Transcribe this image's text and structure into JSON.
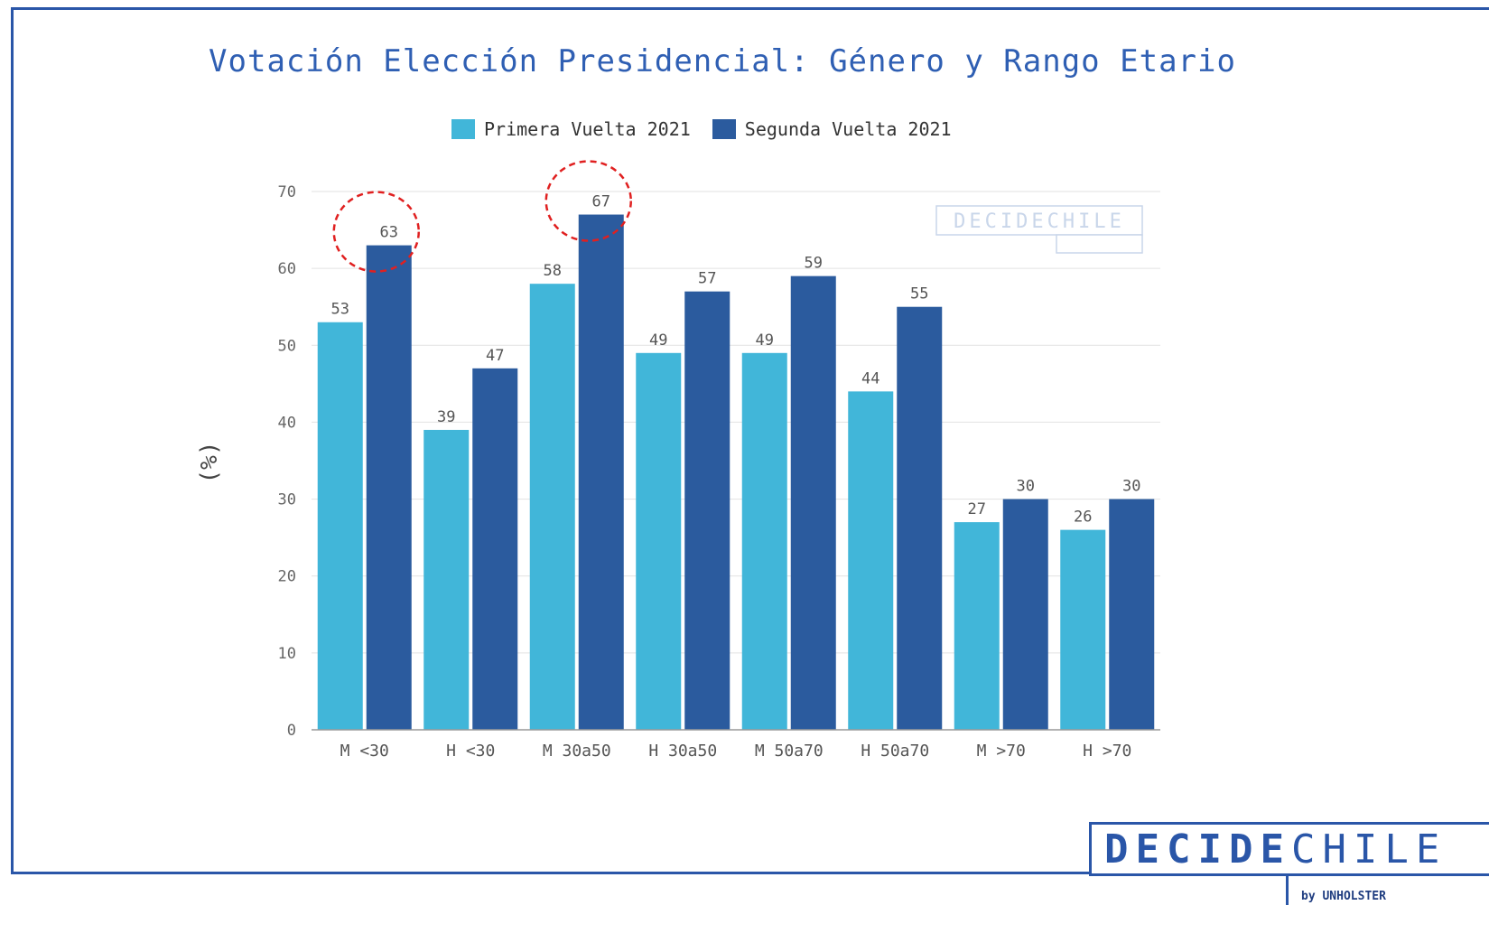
{
  "title": "Votación Elección Presidencial: Género y Rango Etario",
  "watermark": {
    "text": "DECIDECHILE"
  },
  "brand": {
    "part1": "DECIDE",
    "part2": "CHILE",
    "by": "by UNHOLSTER"
  },
  "colors": {
    "primera": "#41b6d9",
    "segunda": "#2b5b9e",
    "accent_text": "#2f5fb3",
    "highlight": "#e02020"
  },
  "chart_data": {
    "type": "bar",
    "title": "Votación Elección Presidencial: Género y Rango Etario",
    "xlabel": "",
    "ylabel": "(%)",
    "ylim": [
      0,
      70
    ],
    "yticks": [
      0,
      10,
      20,
      30,
      40,
      50,
      60,
      70
    ],
    "grid": true,
    "legend_position": "top-center",
    "categories": [
      "M <30",
      "H <30",
      "M 30a50",
      "H 30a50",
      "M 50a70",
      "H 50a70",
      "M >70",
      "H >70"
    ],
    "series": [
      {
        "name": "Primera Vuelta 2021",
        "values": [
          53,
          39,
          58,
          49,
          49,
          44,
          27,
          26
        ]
      },
      {
        "name": "Segunda Vuelta 2021",
        "values": [
          63,
          47,
          67,
          57,
          59,
          55,
          30,
          30
        ]
      }
    ],
    "highlighted": [
      {
        "series": 1,
        "index": 0
      },
      {
        "series": 1,
        "index": 2
      }
    ]
  }
}
